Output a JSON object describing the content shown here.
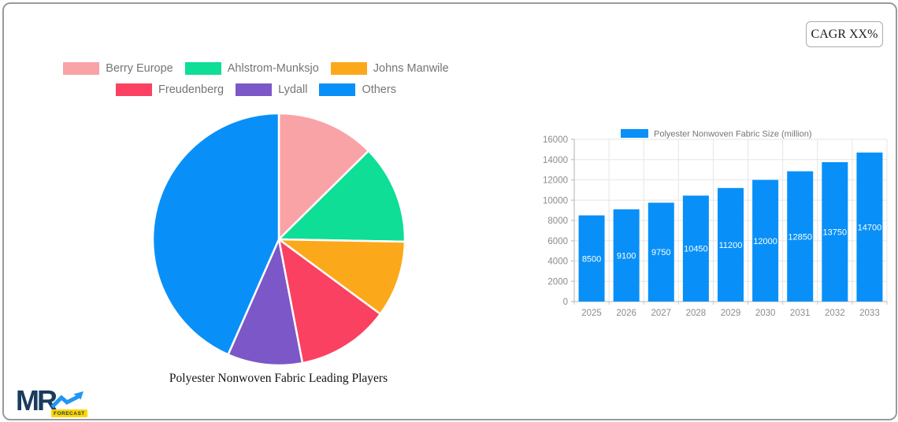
{
  "page": {
    "border_color": "#9a9a9a",
    "background": "#ffffff"
  },
  "cagr_button": {
    "label": "CAGR XX%"
  },
  "logo": {
    "mr": "MR",
    "forecast": "FORECAST",
    "navy": "#1a3b5d",
    "blue": "#2196f3",
    "yellow": "#ffd600"
  },
  "chart_data": [
    {
      "type": "pie",
      "title": "Polyester Nonwoven Fabric Leading Players",
      "labels": [
        "Berry Europe",
        "Ahlstrom-Munksjo",
        "Johns Manwile",
        "Freudenberg",
        "Lydall",
        "Others"
      ],
      "values": [
        12.6,
        12.7,
        9.8,
        11.9,
        9.6,
        43.4
      ],
      "colors": [
        "#f9a3a7",
        "#0ede96",
        "#fba91b",
        "#fa4161",
        "#7c57c7",
        "#0890f8"
      ],
      "start_angle_deg": 0,
      "direction": "clockwise",
      "legend_rows": [
        3,
        3
      ],
      "legend_position": "top",
      "legend_text_color": "#757575",
      "slice_border_color": "#ffffff"
    },
    {
      "type": "bar",
      "legend_label": "Polyester Nonwoven Fabric Size (million)",
      "categories": [
        "2025",
        "2026",
        "2027",
        "2028",
        "2029",
        "2030",
        "2031",
        "2032",
        "2033"
      ],
      "values": [
        8500,
        9100,
        9750,
        10450,
        11200,
        12000,
        12850,
        13750,
        14700
      ],
      "bar_color": "#0890f8",
      "value_label_color": "#ffffff",
      "ylim": [
        0,
        16000
      ],
      "ytick_step": 2000,
      "grid": true,
      "legend_position": "top",
      "axis_text_color": "#8c8c8c",
      "grid_color": "#e6e6e6",
      "axis_line_color": "#c4c4c4"
    }
  ]
}
